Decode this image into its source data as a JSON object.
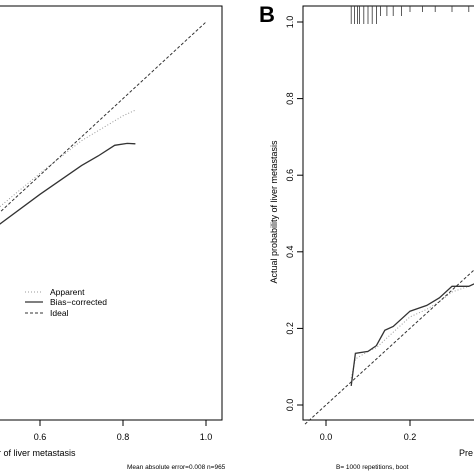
{
  "chart_data": [
    {
      "type": "line",
      "panel_label": "",
      "ylabel": "",
      "xlabel_fragment": "r of liver metastasis",
      "xlim": [
        0.4,
        1.0
      ],
      "ylim": [
        0.0,
        1.0
      ],
      "x_ticks": [
        "0.6",
        "0.8",
        "1.0"
      ],
      "legend": [
        "Apparent",
        "Bias−corrected",
        "Ideal"
      ],
      "series": [
        {
          "name": "Apparent",
          "style": "dotted",
          "color": "#9a9a9a",
          "x": [
            0.4,
            0.5,
            0.6,
            0.7,
            0.8,
            0.83
          ],
          "y": [
            0.42,
            0.515,
            0.605,
            0.69,
            0.755,
            0.77
          ]
        },
        {
          "name": "Bias−corrected",
          "style": "solid",
          "color": "#333333",
          "x": [
            0.4,
            0.5,
            0.6,
            0.7,
            0.74,
            0.78,
            0.81,
            0.83
          ],
          "y": [
            0.395,
            0.47,
            0.55,
            0.625,
            0.65,
            0.678,
            0.683,
            0.682
          ]
        },
        {
          "name": "Ideal",
          "style": "dashed",
          "color": "#333333",
          "x": [
            0.4,
            1.0
          ],
          "y": [
            0.4,
            1.0
          ]
        }
      ],
      "footer": "Mean absolute error=0.008 n=965"
    },
    {
      "type": "line",
      "panel_label": "B",
      "ylabel": "Actual probability of liver metastasis",
      "xlabel_fragment": "Pre",
      "xlim": [
        -0.1,
        0.4
      ],
      "ylim": [
        -0.05,
        1.05
      ],
      "x_ticks": [
        "0.0",
        "0.2"
      ],
      "y_ticks": [
        "0.0",
        "0.2",
        "0.4",
        "0.6",
        "0.8",
        "1.0"
      ],
      "rug_x": [
        0.06,
        0.068,
        0.075,
        0.08,
        0.09,
        0.1,
        0.11,
        0.12,
        0.13,
        0.145,
        0.16,
        0.18,
        0.2,
        0.23,
        0.26,
        0.3,
        0.34,
        0.38
      ],
      "series": [
        {
          "name": "Apparent",
          "style": "dotted",
          "color": "#9a9a9a",
          "x": [
            0.06,
            0.07,
            0.1,
            0.12,
            0.14,
            0.16,
            0.2,
            0.24,
            0.27,
            0.3,
            0.34,
            0.38,
            0.4
          ],
          "y": [
            0.07,
            0.12,
            0.14,
            0.15,
            0.17,
            0.19,
            0.23,
            0.25,
            0.27,
            0.295,
            0.31,
            0.33,
            0.35
          ]
        },
        {
          "name": "Bias−corrected",
          "style": "solid",
          "color": "#333333",
          "x": [
            0.06,
            0.07,
            0.1,
            0.12,
            0.14,
            0.16,
            0.2,
            0.24,
            0.27,
            0.3,
            0.34,
            0.38,
            0.4
          ],
          "y": [
            0.05,
            0.135,
            0.14,
            0.155,
            0.195,
            0.205,
            0.245,
            0.26,
            0.28,
            0.31,
            0.31,
            0.33,
            0.35
          ]
        },
        {
          "name": "Ideal",
          "style": "dashed",
          "color": "#333333",
          "x": [
            -0.05,
            0.4
          ],
          "y": [
            -0.05,
            0.4
          ]
        }
      ],
      "footer": "B= 1000 repetitions, boot"
    }
  ]
}
